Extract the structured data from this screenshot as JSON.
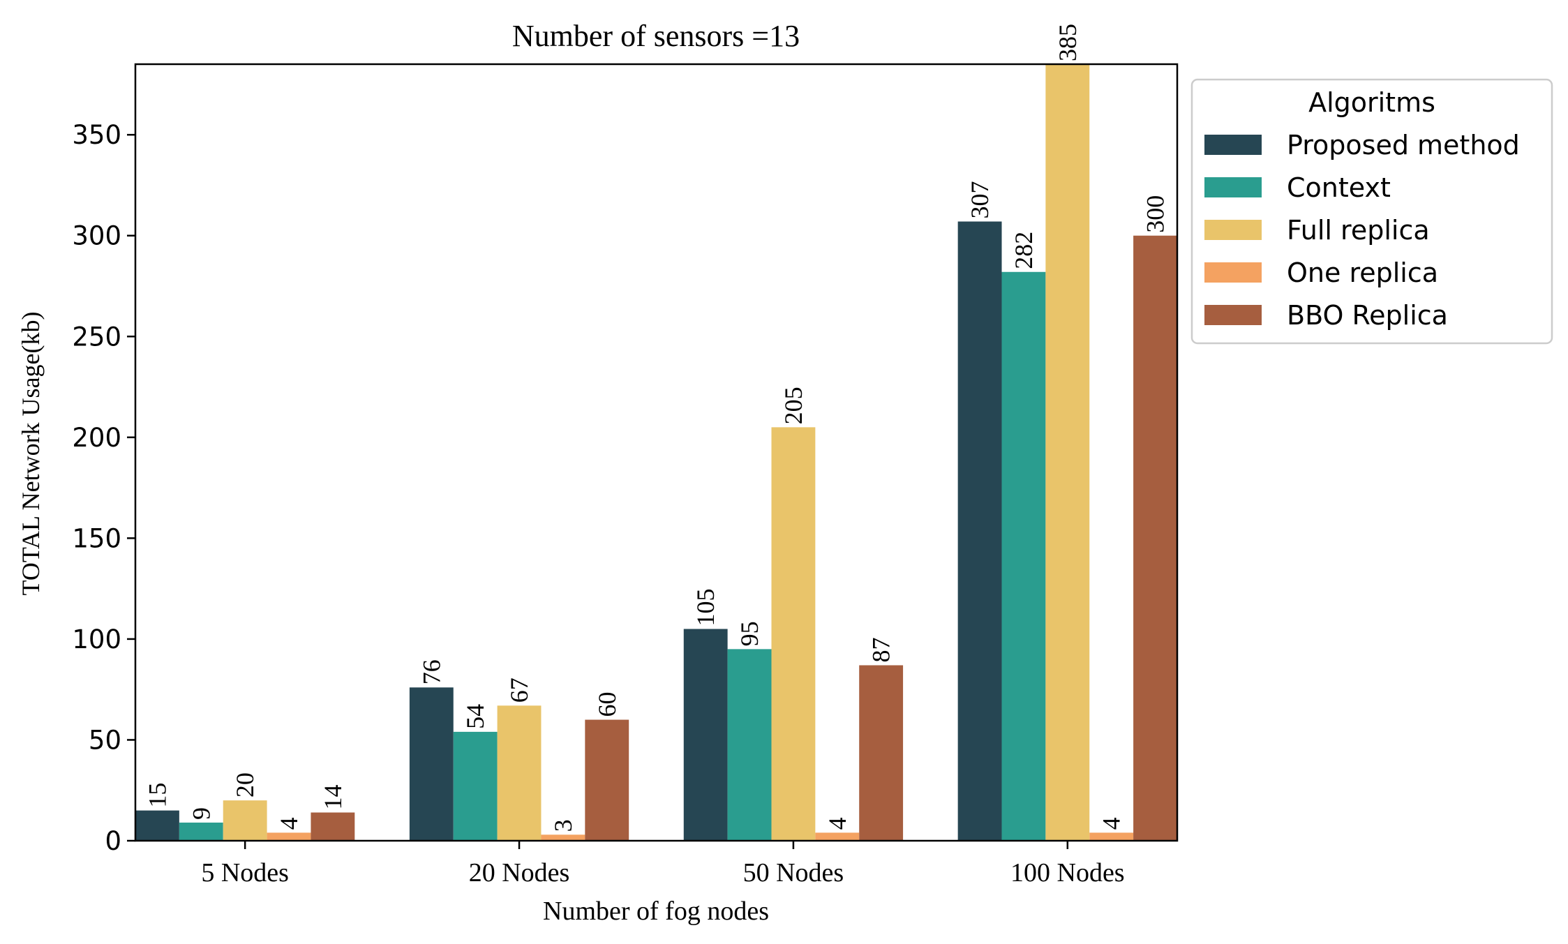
{
  "chart_data": {
    "type": "bar",
    "title": "Number of sensors =13",
    "xlabel": "Number of fog nodes",
    "ylabel": "TOTAL Network Usage(kb)",
    "categories": [
      "5 Nodes",
      "20 Nodes",
      "50 Nodes",
      "100 Nodes"
    ],
    "ylim": [
      0,
      385
    ],
    "yticks": [
      0,
      50,
      100,
      150,
      200,
      250,
      300,
      350
    ],
    "grid": false,
    "legend": {
      "title": "Algoritms",
      "placement": "outside upper right"
    },
    "series": [
      {
        "name": "Proposed method",
        "color": "#264653",
        "values": [
          15,
          76,
          105,
          307
        ]
      },
      {
        "name": "Context",
        "color": "#2a9d8f",
        "values": [
          9,
          54,
          95,
          282
        ]
      },
      {
        "name": "Full replica",
        "color": "#e9c46a",
        "values": [
          20,
          67,
          205,
          385
        ]
      },
      {
        "name": "One replica",
        "color": "#f4a261",
        "values": [
          4,
          3,
          4,
          4
        ]
      },
      {
        "name": "BBO Replica",
        "color": "#a65e3f",
        "values": [
          14,
          60,
          87,
          300
        ]
      }
    ]
  }
}
